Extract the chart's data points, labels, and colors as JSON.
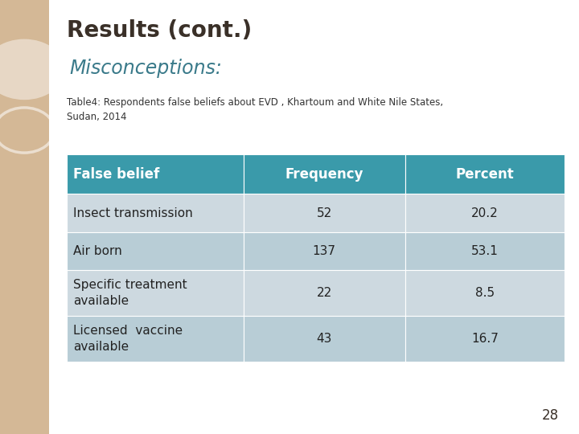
{
  "title": "Results (cont.)",
  "subtitle": "Misconceptions:",
  "caption": "Table4: Respondents false beliefs about EVD , Khartoum and White Nile States,\nSudan, 2014",
  "col_headers": [
    "False belief",
    "Frequency",
    "Percent"
  ],
  "rows": [
    [
      "Insect transmission",
      "52",
      "20.2"
    ],
    [
      "Air born",
      "137",
      "53.1"
    ],
    [
      "Specific treatment\navailable",
      "22",
      "8.5"
    ],
    [
      "Licensed  vaccine\navailable",
      "43",
      "16.7"
    ]
  ],
  "header_bg": "#3a9aaa",
  "header_text_color": "#ffffff",
  "row_bg_odd": "#cdd9e0",
  "row_bg_even": "#b8cdd6",
  "row_text_color": "#222222",
  "slide_bg": "#ffffff",
  "left_bg": "#d4b896",
  "title_color": "#3a3028",
  "subtitle_color": "#3a7a8a",
  "caption_color": "#333333",
  "page_number": "28",
  "title_fontsize": 20,
  "subtitle_fontsize": 17,
  "caption_fontsize": 8.5,
  "header_fontsize": 12,
  "cell_fontsize": 11,
  "page_num_fontsize": 12
}
